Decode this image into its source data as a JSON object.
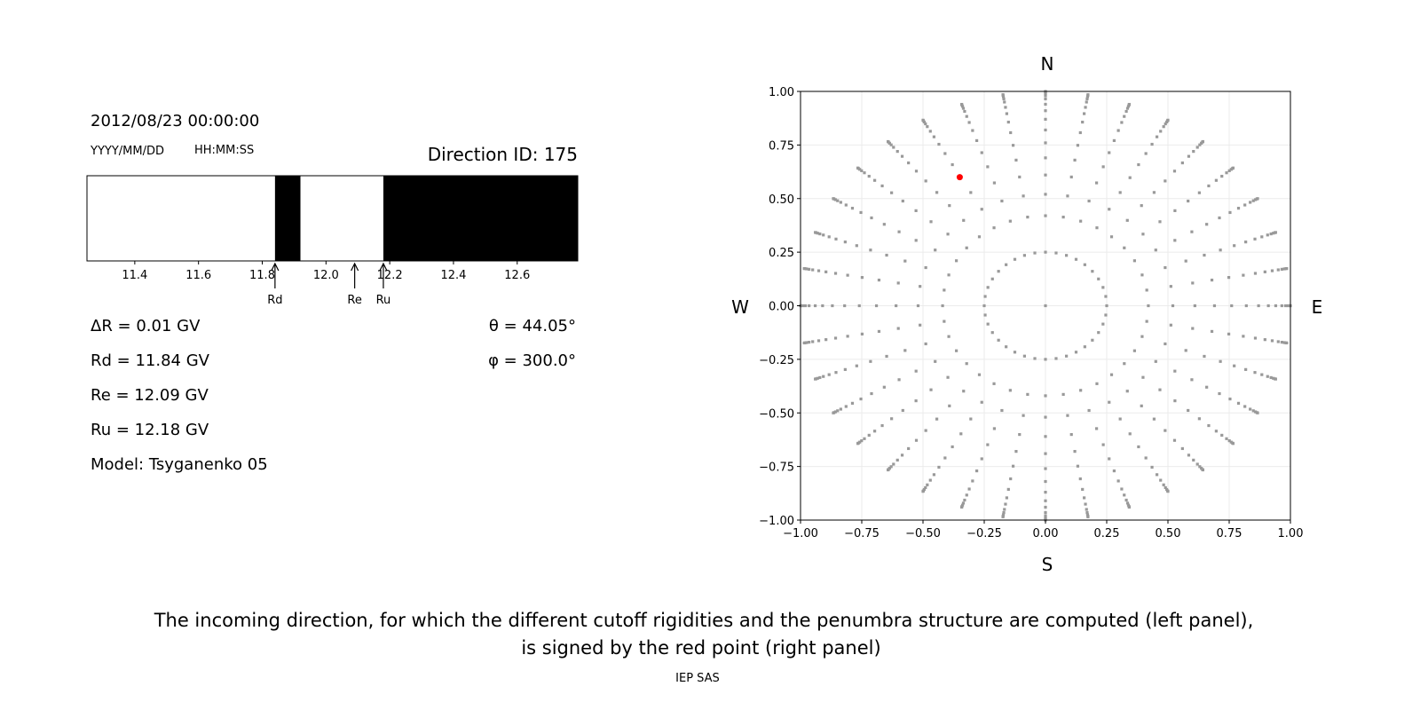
{
  "left_panel": {
    "datetime": "2012/08/23 00:00:00",
    "date_format": "YYYY/MM/DD",
    "time_format": "HH:MM:SS",
    "direction_id": "Direction ID: 175",
    "delta_r": "ΔR = 0.01 GV",
    "rd": "Rd = 11.84 GV",
    "re": "Re = 12.09 GV",
    "ru": "Ru = 12.18 GV",
    "model": "Model: Tsyganenko 05",
    "theta": "θ = 44.05°",
    "phi": "φ = 300.0°"
  },
  "caption": {
    "line1": "The incoming direction, for which the different cutoff rigidities and the penumbra structure are computed (left panel),",
    "line2": "is signed by the red point (right panel)",
    "credit": "IEP SAS"
  },
  "chart_data": [
    {
      "type": "penumbra-bar",
      "xlim": [
        11.25,
        12.79
      ],
      "xticks": [
        "11.4",
        "11.6",
        "11.8",
        "12.0",
        "12.2",
        "12.4",
        "12.6"
      ],
      "bands": [
        {
          "from": 11.25,
          "to": 11.84,
          "state": "allowed",
          "color": "#ffffff"
        },
        {
          "from": 11.84,
          "to": 11.92,
          "state": "forbidden",
          "color": "#000000"
        },
        {
          "from": 11.92,
          "to": 12.18,
          "state": "allowed",
          "color": "#ffffff"
        },
        {
          "from": 12.18,
          "to": 12.79,
          "state": "forbidden",
          "color": "#000000"
        }
      ],
      "markers": [
        {
          "label": "Rd",
          "value": 11.84
        },
        {
          "label": "Re",
          "value": 12.09
        },
        {
          "label": "Ru",
          "value": 12.18
        }
      ]
    },
    {
      "type": "scatter",
      "xlim": [
        -1,
        1
      ],
      "ylim": [
        -1,
        1
      ],
      "xticks": [
        "−1.00",
        "−0.75",
        "−0.50",
        "−0.25",
        "0.00",
        "0.25",
        "0.50",
        "0.75",
        "1.00"
      ],
      "yticks": [
        "−1.00",
        "−0.75",
        "−0.50",
        "−0.25",
        "0.00",
        "0.25",
        "0.50",
        "0.75",
        "1.00"
      ],
      "grid": true,
      "compass": {
        "n": "N",
        "s": "S",
        "w": "W",
        "e": "E"
      },
      "grid_points": {
        "color": "#999999",
        "azimuth_step_deg": 10,
        "radii": [
          0.25,
          0.42,
          0.52,
          0.61,
          0.69,
          0.76,
          0.82,
          0.87,
          0.91,
          0.94,
          0.965,
          0.98,
          0.99,
          0.997,
          1.0
        ],
        "center": [
          0,
          0
        ]
      },
      "highlight": {
        "x": -0.35,
        "y": 0.6,
        "color": "#ff0000"
      }
    }
  ]
}
